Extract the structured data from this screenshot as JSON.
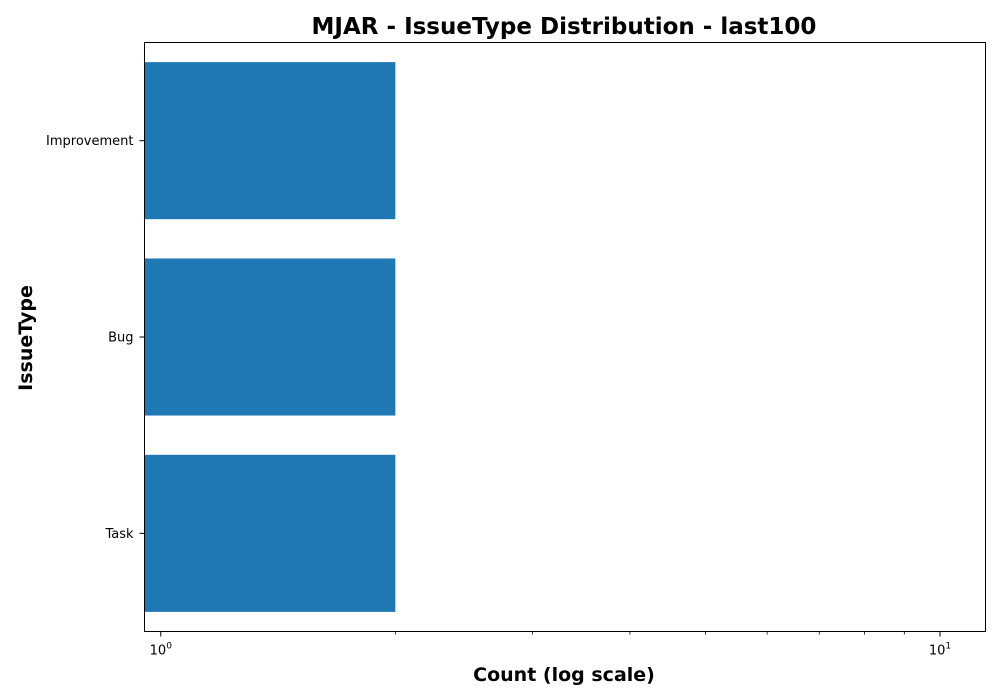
{
  "chart_data": {
    "type": "bar",
    "orientation": "horizontal",
    "title": "MJAR - IssueType Distribution - last100",
    "xlabel": "Count (log scale)",
    "ylabel": "IssueType",
    "xscale": "log",
    "xlim": [
      0.953,
      11.44
    ],
    "x_ticks": [
      {
        "base": "10",
        "exp": "0",
        "value": 1
      },
      {
        "base": "10",
        "exp": "1",
        "value": 10
      }
    ],
    "x_minor_ticks": [
      2,
      3,
      4,
      5,
      6,
      7,
      8,
      9
    ],
    "categories": [
      "Improvement",
      "Bug",
      "Task"
    ],
    "values": [
      2,
      2,
      2
    ],
    "bar_color": "#1f77b4",
    "grid": false,
    "legend": "none"
  }
}
